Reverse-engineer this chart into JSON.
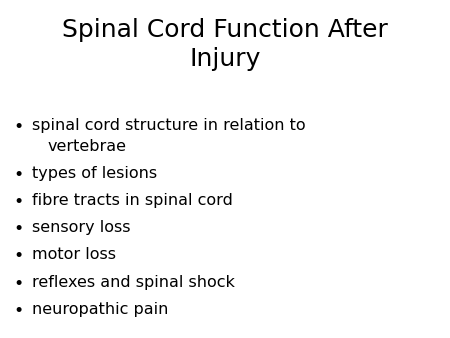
{
  "title": "Spinal Cord Function After\nInjury",
  "bullet_items": [
    [
      "spinal cord structure in relation to",
      "  vertebrae"
    ],
    [
      "types of lesions"
    ],
    [
      "fibre tracts in spinal cord"
    ],
    [
      "sensory loss"
    ],
    [
      "motor loss"
    ],
    [
      "reflexes and spinal shock"
    ],
    [
      "neuropathic pain"
    ]
  ],
  "background_color": "#ffffff",
  "text_color": "#000000",
  "title_fontsize": 18,
  "bullet_fontsize": 11.5,
  "font_family": "Comic Sans MS"
}
